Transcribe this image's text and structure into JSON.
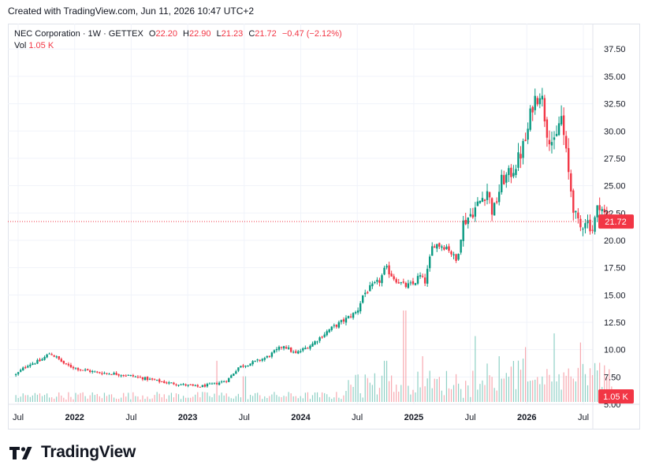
{
  "header": {
    "caption": "Created with TradingView.com, Jun 11, 2026 10:47 UTC+2"
  },
  "legend": {
    "symbol": "NEC Corporation · 1W · GETTEX",
    "open_label": "O",
    "open": "22.20",
    "high_label": "H",
    "high": "22.90",
    "low_label": "L",
    "low": "21.23",
    "close_label": "C",
    "close": "21.72",
    "change": "−0.47 (−2.12%)",
    "vol_label": "Vol",
    "vol": "1.05 K"
  },
  "footer": {
    "brand": "TradingView"
  },
  "colors": {
    "up": "#089981",
    "down": "#f23645",
    "up_volume": "#8fd0c5",
    "down_volume": "#f7a9b0",
    "grid": "#f0f3fa",
    "last_price": "#f23645"
  },
  "chart_data": {
    "type": "candlestick",
    "interval": "1W",
    "y_axis": {
      "min": 5.0,
      "max": 37.5,
      "ticks": [
        "5.00",
        "7.50",
        "10.00",
        "12.50",
        "15.00",
        "17.50",
        "20.00",
        "22.50",
        "25.00",
        "27.50",
        "30.00",
        "32.50",
        "35.00",
        "37.50"
      ]
    },
    "x_axis": {
      "ticks": [
        {
          "label": "Jul",
          "bold": false,
          "t": 0.0
        },
        {
          "label": "2022",
          "bold": true,
          "t": 0.5
        },
        {
          "label": "Jul",
          "bold": false,
          "t": 1.0
        },
        {
          "label": "2023",
          "bold": true,
          "t": 1.5
        },
        {
          "label": "Jul",
          "bold": false,
          "t": 2.0
        },
        {
          "label": "2024",
          "bold": true,
          "t": 2.5
        },
        {
          "label": "Jul",
          "bold": false,
          "t": 3.0
        },
        {
          "label": "2025",
          "bold": true,
          "t": 3.5
        },
        {
          "label": "Jul",
          "bold": false,
          "t": 4.0
        },
        {
          "label": "2026",
          "bold": true,
          "t": 4.5
        },
        {
          "label": "Jul",
          "bold": false,
          "t": 5.0
        }
      ]
    },
    "last_price": "21.72",
    "last_volume": "1.05 K",
    "close_path": [
      [
        -0.02,
        7.7
      ],
      [
        0.08,
        8.6
      ],
      [
        0.2,
        9.0
      ],
      [
        0.28,
        9.7
      ],
      [
        0.35,
        9.2
      ],
      [
        0.42,
        8.6
      ],
      [
        0.55,
        8.2
      ],
      [
        0.7,
        7.9
      ],
      [
        0.85,
        7.8
      ],
      [
        1.0,
        7.6
      ],
      [
        1.15,
        7.3
      ],
      [
        1.3,
        7.0
      ],
      [
        1.45,
        6.8
      ],
      [
        1.6,
        6.6
      ],
      [
        1.75,
        6.9
      ],
      [
        1.85,
        7.2
      ],
      [
        1.95,
        8.4
      ],
      [
        2.1,
        8.9
      ],
      [
        2.2,
        9.3
      ],
      [
        2.35,
        10.4
      ],
      [
        2.45,
        9.6
      ],
      [
        2.6,
        10.5
      ],
      [
        2.75,
        11.8
      ],
      [
        2.9,
        12.8
      ],
      [
        3.0,
        13.5
      ],
      [
        3.05,
        15.0
      ],
      [
        3.12,
        15.7
      ],
      [
        3.2,
        16.3
      ],
      [
        3.25,
        17.5
      ],
      [
        3.33,
        16.5
      ],
      [
        3.42,
        15.8
      ],
      [
        3.5,
        16.0
      ],
      [
        3.55,
        16.8
      ],
      [
        3.6,
        16.2
      ],
      [
        3.67,
        19.7
      ],
      [
        3.8,
        19.4
      ],
      [
        3.88,
        18.0
      ],
      [
        3.93,
        21.5
      ],
      [
        4.05,
        23.0
      ],
      [
        4.15,
        24.6
      ],
      [
        4.2,
        22.4
      ],
      [
        4.28,
        25.5
      ],
      [
        4.35,
        26.0
      ],
      [
        4.43,
        27.5
      ],
      [
        4.5,
        29.5
      ],
      [
        4.55,
        32.5
      ],
      [
        4.62,
        33.8
      ],
      [
        4.68,
        30.0
      ],
      [
        4.75,
        28.5
      ],
      [
        4.8,
        31.7
      ],
      [
        4.87,
        26.0
      ],
      [
        4.92,
        22.5
      ],
      [
        4.97,
        21.0
      ],
      [
        5.02,
        22.0
      ],
      [
        5.08,
        21.0
      ],
      [
        5.14,
        23.5
      ],
      [
        5.2,
        22.0
      ],
      [
        5.25,
        21.7
      ]
    ],
    "candle_count": 250,
    "volume_peaks": [
      {
        "t": 1.75,
        "v": 0.45,
        "up": true
      },
      {
        "t": 2.0,
        "v": 0.28,
        "up": true
      },
      {
        "t": 3.07,
        "v": 0.3,
        "up": true
      },
      {
        "t": 3.25,
        "v": 0.45,
        "up": false
      },
      {
        "t": 3.42,
        "v": 1.0,
        "up": true
      },
      {
        "t": 3.57,
        "v": 0.5,
        "up": true
      },
      {
        "t": 4.05,
        "v": 0.72,
        "up": true
      },
      {
        "t": 4.25,
        "v": 0.5,
        "up": false
      },
      {
        "t": 4.48,
        "v": 0.6,
        "up": true
      },
      {
        "t": 4.75,
        "v": 0.75,
        "up": false
      },
      {
        "t": 4.97,
        "v": 0.65,
        "up": true
      },
      {
        "t": 5.18,
        "v": 0.4,
        "up": false
      }
    ]
  }
}
